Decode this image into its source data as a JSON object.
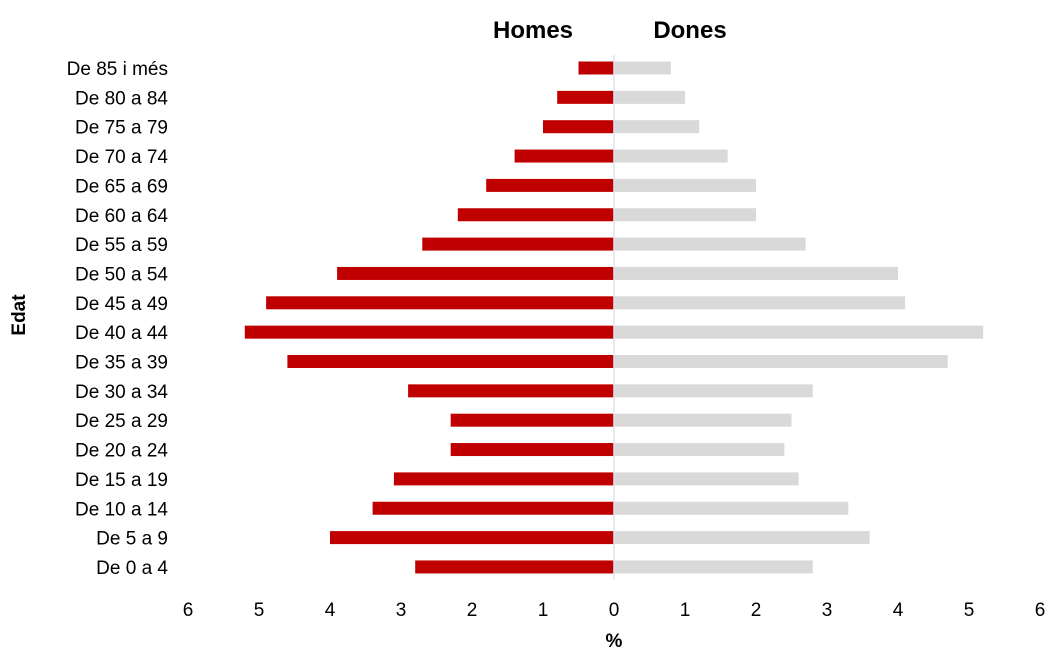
{
  "chart_data": {
    "type": "bar",
    "orientation": "horizontal-pyramid",
    "left_header": "Homes",
    "right_header": "Dones",
    "xlabel": "%",
    "ylabel": "Edat",
    "xlim": [
      0,
      6
    ],
    "xticks": [
      "6",
      "5",
      "4",
      "3",
      "2",
      "1",
      "0",
      "1",
      "2",
      "3",
      "4",
      "5",
      "6"
    ],
    "grid": false,
    "categories": [
      "De 85 i més",
      "De 80 a 84",
      "De 75 a 79",
      "De 70 a 74",
      "De 65 a 69",
      "De 60 a 64",
      "De 55 a 59",
      "De 50 a 54",
      "De 45 a 49",
      "De 40 a 44",
      "De 35 a 39",
      "De 30 a 34",
      "De 25 a 29",
      "De 20 a 24",
      "De 15 a 19",
      "De 10 a 14",
      "De 5 a 9",
      "De 0 a 4"
    ],
    "series": [
      {
        "side": "left",
        "color": "#c00000",
        "values": [
          0.5,
          0.8,
          1.0,
          1.4,
          1.8,
          2.2,
          2.7,
          3.9,
          4.9,
          5.2,
          4.6,
          2.9,
          2.3,
          2.3,
          3.1,
          3.4,
          4.0,
          2.8
        ]
      },
      {
        "side": "right",
        "color": "#d9d9d9",
        "values": [
          0.8,
          1.0,
          1.2,
          1.6,
          2.0,
          2.0,
          2.7,
          4.0,
          4.1,
          5.2,
          4.7,
          2.8,
          2.5,
          2.4,
          2.6,
          3.3,
          3.6,
          2.8
        ]
      }
    ],
    "center_line_color": "#dce6f2"
  }
}
